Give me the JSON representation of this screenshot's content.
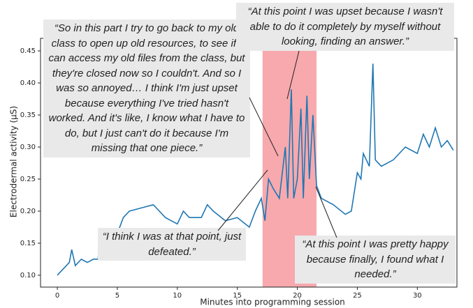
{
  "chart_data": {
    "type": "line",
    "xlabel": "Minutes into programming session",
    "ylabel": "Electrodermal activity (µS)",
    "xlim": [
      -1.4,
      33.3
    ],
    "ylim": [
      0.0815,
      0.4696
    ],
    "xticks": [
      0,
      5,
      10,
      15,
      20,
      25,
      30
    ],
    "yticks": [
      {
        "value": 0.1,
        "label": "0.10"
      },
      {
        "value": 0.15,
        "label": "0.15"
      },
      {
        "value": 0.2,
        "label": "0.20"
      },
      {
        "value": 0.25,
        "label": "0.25"
      },
      {
        "value": 0.3,
        "label": "0.30"
      },
      {
        "value": 0.35,
        "label": "0.35"
      },
      {
        "value": 0.4,
        "label": "0.40"
      },
      {
        "value": 0.45,
        "label": "0.45"
      }
    ],
    "highlight": {
      "x": [
        17.1,
        21.6
      ],
      "color": "#f7a9ad"
    },
    "series": [
      {
        "color": "#1f77b4",
        "x": [
          0,
          0.5,
          1,
          1.2,
          1.5,
          2,
          2.5,
          3,
          3.4,
          3.5,
          4,
          4.5,
          5,
          5.5,
          6,
          7,
          8,
          8.5,
          9,
          10,
          10.5,
          11,
          12,
          12.5,
          13,
          14,
          15,
          16,
          16.5,
          17,
          17.3,
          17.6,
          18,
          18.5,
          19,
          19.2,
          19.5,
          19.7,
          20,
          20.3,
          20.5,
          20.8,
          21,
          21.3,
          21.6,
          22,
          23,
          24,
          24.5,
          25,
          25.3,
          25.5,
          26,
          26.3,
          26.5,
          27,
          28,
          29,
          30,
          30.5,
          31,
          31.5,
          32,
          32.5,
          33
        ],
        "values": [
          0.1,
          0.11,
          0.12,
          0.14,
          0.115,
          0.125,
          0.12,
          0.125,
          0.125,
          0.16,
          0.155,
          0.16,
          0.165,
          0.19,
          0.2,
          0.205,
          0.21,
          0.2,
          0.19,
          0.18,
          0.2,
          0.19,
          0.19,
          0.21,
          0.2,
          0.185,
          0.19,
          0.175,
          0.2,
          0.22,
          0.185,
          0.25,
          0.235,
          0.22,
          0.3,
          0.22,
          0.39,
          0.22,
          0.25,
          0.36,
          0.22,
          0.38,
          0.25,
          0.35,
          0.24,
          0.22,
          0.21,
          0.195,
          0.2,
          0.26,
          0.25,
          0.29,
          0.27,
          0.43,
          0.28,
          0.27,
          0.28,
          0.3,
          0.29,
          0.32,
          0.3,
          0.33,
          0.3,
          0.31,
          0.295
        ]
      }
    ],
    "annotations": [
      "“So in this part I try to go back to my old class to open up old resources, to see if I can access my old files from the class, but they're closed now so I couldn't. And so I was so annoyed… I think I'm just upset because everything I've tried hasn't worked. And it's like, I know what I have to do, but I just can't do it because I'm missing that one piece.”",
      "“At this point I was upset because I wasn't able to do it completely by myself without looking, finding an answer.”",
      "“I think I was at that point, just defeated.”",
      "“At this point I was pretty happy because finally, I found what I needed.”"
    ]
  }
}
